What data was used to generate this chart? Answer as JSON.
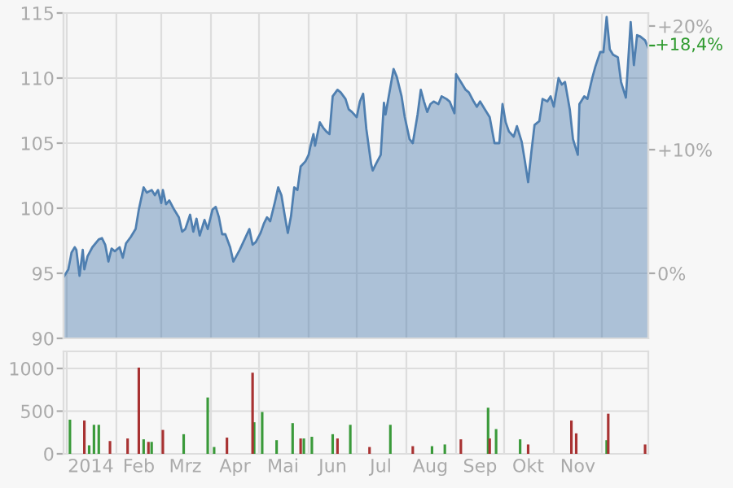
{
  "chart_data": [
    {
      "type": "area",
      "x": [
        "2013-12-30",
        "2014-01-02",
        "2014-01-04",
        "2014-01-06",
        "2014-01-07",
        "2014-01-09",
        "2014-01-11",
        "2014-01-12",
        "2014-01-14",
        "2014-01-17",
        "2014-01-21",
        "2014-01-23",
        "2014-01-25",
        "2014-01-27",
        "2014-01-29",
        "2014-01-31",
        "2014-02-03",
        "2014-02-05",
        "2014-02-07",
        "2014-02-10",
        "2014-02-13",
        "2014-02-15",
        "2014-02-18",
        "2014-02-20",
        "2014-02-23",
        "2014-02-25",
        "2014-02-27",
        "2014-03-01",
        "2014-03-02",
        "2014-03-04",
        "2014-03-06",
        "2014-03-09",
        "2014-03-12",
        "2014-03-14",
        "2014-03-16",
        "2014-03-19",
        "2014-03-21",
        "2014-03-23",
        "2014-03-25",
        "2014-03-28",
        "2014-03-30",
        "2014-04-02",
        "2014-04-04",
        "2014-04-06",
        "2014-04-08",
        "2014-04-10",
        "2014-04-13",
        "2014-04-15",
        "2014-04-19",
        "2014-04-22",
        "2014-04-25",
        "2014-04-27",
        "2014-04-29",
        "2014-05-02",
        "2014-05-04",
        "2014-05-06",
        "2014-05-08",
        "2014-05-11",
        "2014-05-13",
        "2014-05-15",
        "2014-05-17",
        "2014-05-19",
        "2014-05-21",
        "2014-05-23",
        "2014-05-25",
        "2014-05-27",
        "2014-05-30",
        "2014-06-01",
        "2014-06-02",
        "2014-06-04",
        "2014-06-05",
        "2014-06-08",
        "2014-06-10",
        "2014-06-12",
        "2014-06-14",
        "2014-06-16",
        "2014-06-19",
        "2014-06-21",
        "2014-06-24",
        "2014-06-26",
        "2014-06-28",
        "2014-07-01",
        "2014-07-03",
        "2014-07-05",
        "2014-07-07",
        "2014-07-10",
        "2014-07-11",
        "2014-07-13",
        "2014-07-16",
        "2014-07-18",
        "2014-07-19",
        "2014-07-22",
        "2014-07-24",
        "2014-07-26",
        "2014-07-29",
        "2014-07-31",
        "2014-08-03",
        "2014-08-05",
        "2014-08-08",
        "2014-08-10",
        "2014-08-12",
        "2014-08-14",
        "2014-08-16",
        "2014-08-18",
        "2014-08-21",
        "2014-08-23",
        "2014-08-26",
        "2014-08-28",
        "2014-08-31",
        "2014-09-01",
        "2014-09-04",
        "2014-09-07",
        "2014-09-09",
        "2014-09-12",
        "2014-09-14",
        "2014-09-16",
        "2014-09-19",
        "2014-09-22",
        "2014-09-25",
        "2014-09-28",
        "2014-09-30",
        "2014-10-02",
        "2014-10-04",
        "2014-10-07",
        "2014-10-09",
        "2014-10-12",
        "2014-10-14",
        "2014-10-16",
        "2014-10-18",
        "2014-10-20",
        "2014-10-23",
        "2014-10-25",
        "2014-10-28",
        "2014-10-30",
        "2014-11-01",
        "2014-11-04",
        "2014-11-06",
        "2014-11-08",
        "2014-11-11",
        "2014-11-13",
        "2014-11-16",
        "2014-11-17",
        "2014-11-20",
        "2014-11-22",
        "2014-11-25",
        "2014-11-27",
        "2014-11-30",
        "2014-12-02",
        "2014-12-04",
        "2014-12-06",
        "2014-12-08",
        "2014-12-11",
        "2014-12-13",
        "2014-12-16",
        "2014-12-19",
        "2014-12-21",
        "2014-12-23",
        "2014-12-25",
        "2014-12-28",
        "2014-12-30"
      ],
      "series": [
        {
          "color": "#4f7fb0",
          "values": [
            94.7,
            95.3,
            96.6,
            97.0,
            96.8,
            94.8,
            96.8,
            95.3,
            96.3,
            97.0,
            97.6,
            97.7,
            97.2,
            95.9,
            96.9,
            96.7,
            97.0,
            96.2,
            97.3,
            97.8,
            98.4,
            99.9,
            101.6,
            101.2,
            101.4,
            101.0,
            101.4,
            100.4,
            101.4,
            100.3,
            100.6,
            99.9,
            99.3,
            98.2,
            98.4,
            99.5,
            98.2,
            99.2,
            97.9,
            99.1,
            98.4,
            99.9,
            100.1,
            99.3,
            98.0,
            98.0,
            97.0,
            95.9,
            96.8,
            97.6,
            98.4,
            97.2,
            97.4,
            98.1,
            98.8,
            99.3,
            99.0,
            100.5,
            101.6,
            101.0,
            99.5,
            98.1,
            99.4,
            101.6,
            101.4,
            103.2,
            103.6,
            104.1,
            104.7,
            105.7,
            104.8,
            106.6,
            106.2,
            105.9,
            105.7,
            108.6,
            109.1,
            108.9,
            108.4,
            107.6,
            107.4,
            107.0,
            108.2,
            108.8,
            106.1,
            103.4,
            102.9,
            103.4,
            104.1,
            108.1,
            107.2,
            109.3,
            110.7,
            110.1,
            108.6,
            107.0,
            105.3,
            105.0,
            107.2,
            109.1,
            108.2,
            107.4,
            108.0,
            108.2,
            108.0,
            108.6,
            108.4,
            108.2,
            107.3,
            110.3,
            109.7,
            109.1,
            108.9,
            108.2,
            107.8,
            108.2,
            107.6,
            107.0,
            105.0,
            105.0,
            108.0,
            106.6,
            105.9,
            105.5,
            106.3,
            105.1,
            103.6,
            102.0,
            104.3,
            106.4,
            106.7,
            108.4,
            108.2,
            108.6,
            107.8,
            110.0,
            109.5,
            109.7,
            107.6,
            105.3,
            104.1,
            108.0,
            108.6,
            108.4,
            110.0,
            110.9,
            112.0,
            112.0,
            114.7,
            112.2,
            111.8,
            111.6,
            109.7,
            108.5,
            114.3,
            111.0,
            113.3,
            113.2,
            112.9,
            112.3
          ]
        }
      ],
      "xlim": [
        "2013-12-30",
        "2014-12-30"
      ],
      "xticks": [
        {
          "value": "2014-01-01",
          "label": null
        },
        {
          "value": "2014-02-01",
          "label": null
        },
        {
          "value": "2014-03-01",
          "label": null
        },
        {
          "value": "2014-04-01",
          "label": null
        },
        {
          "value": "2014-05-01",
          "label": null
        },
        {
          "value": "2014-06-01",
          "label": null
        },
        {
          "value": "2014-07-01",
          "label": null
        },
        {
          "value": "2014-08-01",
          "label": null
        },
        {
          "value": "2014-09-01",
          "label": null
        },
        {
          "value": "2014-10-01",
          "label": null
        },
        {
          "value": "2014-11-01",
          "label": null
        },
        {
          "value": "2014-12-01",
          "label": null
        }
      ],
      "ylim": [
        90,
        115
      ],
      "yticks": [
        90,
        95,
        100,
        105,
        110,
        115
      ],
      "y2lim": [
        -5.26,
        21.05
      ],
      "y2ticks": [
        {
          "value": 0,
          "label": "0%"
        },
        {
          "value": 10,
          "label": "+10%"
        },
        {
          "value": 20,
          "label": "+20%"
        }
      ],
      "annotations": [
        {
          "text": "+18,4%",
          "x": "2014-12-30",
          "y": 112.5
        }
      ],
      "grid": true,
      "tick_labels": "y"
    },
    {
      "type": "bar",
      "series": [
        {
          "color": "#3a9a3a",
          "x": [
            "2014-01-03",
            "2014-01-15",
            "2014-01-18",
            "2014-01-21",
            "2014-02-18",
            "2014-02-23",
            "2014-03-15",
            "2014-03-30",
            "2014-04-03",
            "2014-04-28",
            "2014-05-03",
            "2014-05-12",
            "2014-05-22",
            "2014-05-29",
            "2014-06-03",
            "2014-06-16",
            "2014-06-27",
            "2014-07-22",
            "2014-08-17",
            "2014-08-25",
            "2014-09-21",
            "2014-09-26",
            "2014-10-11",
            "2014-12-04"
          ],
          "values": [
            400,
            100,
            340,
            340,
            170,
            140,
            230,
            660,
            80,
            370,
            490,
            160,
            360,
            180,
            200,
            230,
            340,
            340,
            90,
            110,
            540,
            290,
            170,
            160
          ]
        },
        {
          "color": "#a83232",
          "x": [
            "2014-01-12",
            "2014-01-28",
            "2014-02-08",
            "2014-02-15",
            "2014-02-21",
            "2014-03-02",
            "2014-04-11",
            "2014-04-27",
            "2014-05-27",
            "2014-06-19",
            "2014-07-09",
            "2014-08-05",
            "2014-09-04",
            "2014-09-22",
            "2014-10-16",
            "2014-11-12",
            "2014-11-15",
            "2014-12-05",
            "2014-12-28"
          ],
          "values": [
            390,
            150,
            180,
            1010,
            140,
            280,
            190,
            950,
            180,
            180,
            80,
            90,
            170,
            180,
            110,
            390,
            240,
            470,
            110
          ]
        }
      ],
      "xlim": [
        "2013-12-30",
        "2014-12-30"
      ],
      "xticks": [
        {
          "value": "2014-01-01",
          "label": null
        },
        {
          "value": "2014-01-16",
          "label": "2014"
        },
        {
          "value": "2014-02-01",
          "label": null
        },
        {
          "value": "2014-02-15",
          "label": "Feb"
        },
        {
          "value": "2014-03-01",
          "label": null
        },
        {
          "value": "2014-03-16",
          "label": "Mrz"
        },
        {
          "value": "2014-04-01",
          "label": null
        },
        {
          "value": "2014-04-16",
          "label": "Apr"
        },
        {
          "value": "2014-05-01",
          "label": null
        },
        {
          "value": "2014-05-16",
          "label": "Mai"
        },
        {
          "value": "2014-06-01",
          "label": null
        },
        {
          "value": "2014-06-16",
          "label": "Jun"
        },
        {
          "value": "2014-07-01",
          "label": null
        },
        {
          "value": "2014-07-16",
          "label": "Jul"
        },
        {
          "value": "2014-08-01",
          "label": null
        },
        {
          "value": "2014-08-16",
          "label": "Aug"
        },
        {
          "value": "2014-09-01",
          "label": null
        },
        {
          "value": "2014-09-16",
          "label": "Sep"
        },
        {
          "value": "2014-10-01",
          "label": null
        },
        {
          "value": "2014-10-16",
          "label": "Okt"
        },
        {
          "value": "2014-11-01",
          "label": null
        },
        {
          "value": "2014-11-16",
          "label": "Nov"
        },
        {
          "value": "2014-12-01",
          "label": null
        }
      ],
      "ylim": [
        0,
        1200
      ],
      "yticks": [
        0,
        500,
        1000
      ],
      "grid": true
    }
  ]
}
